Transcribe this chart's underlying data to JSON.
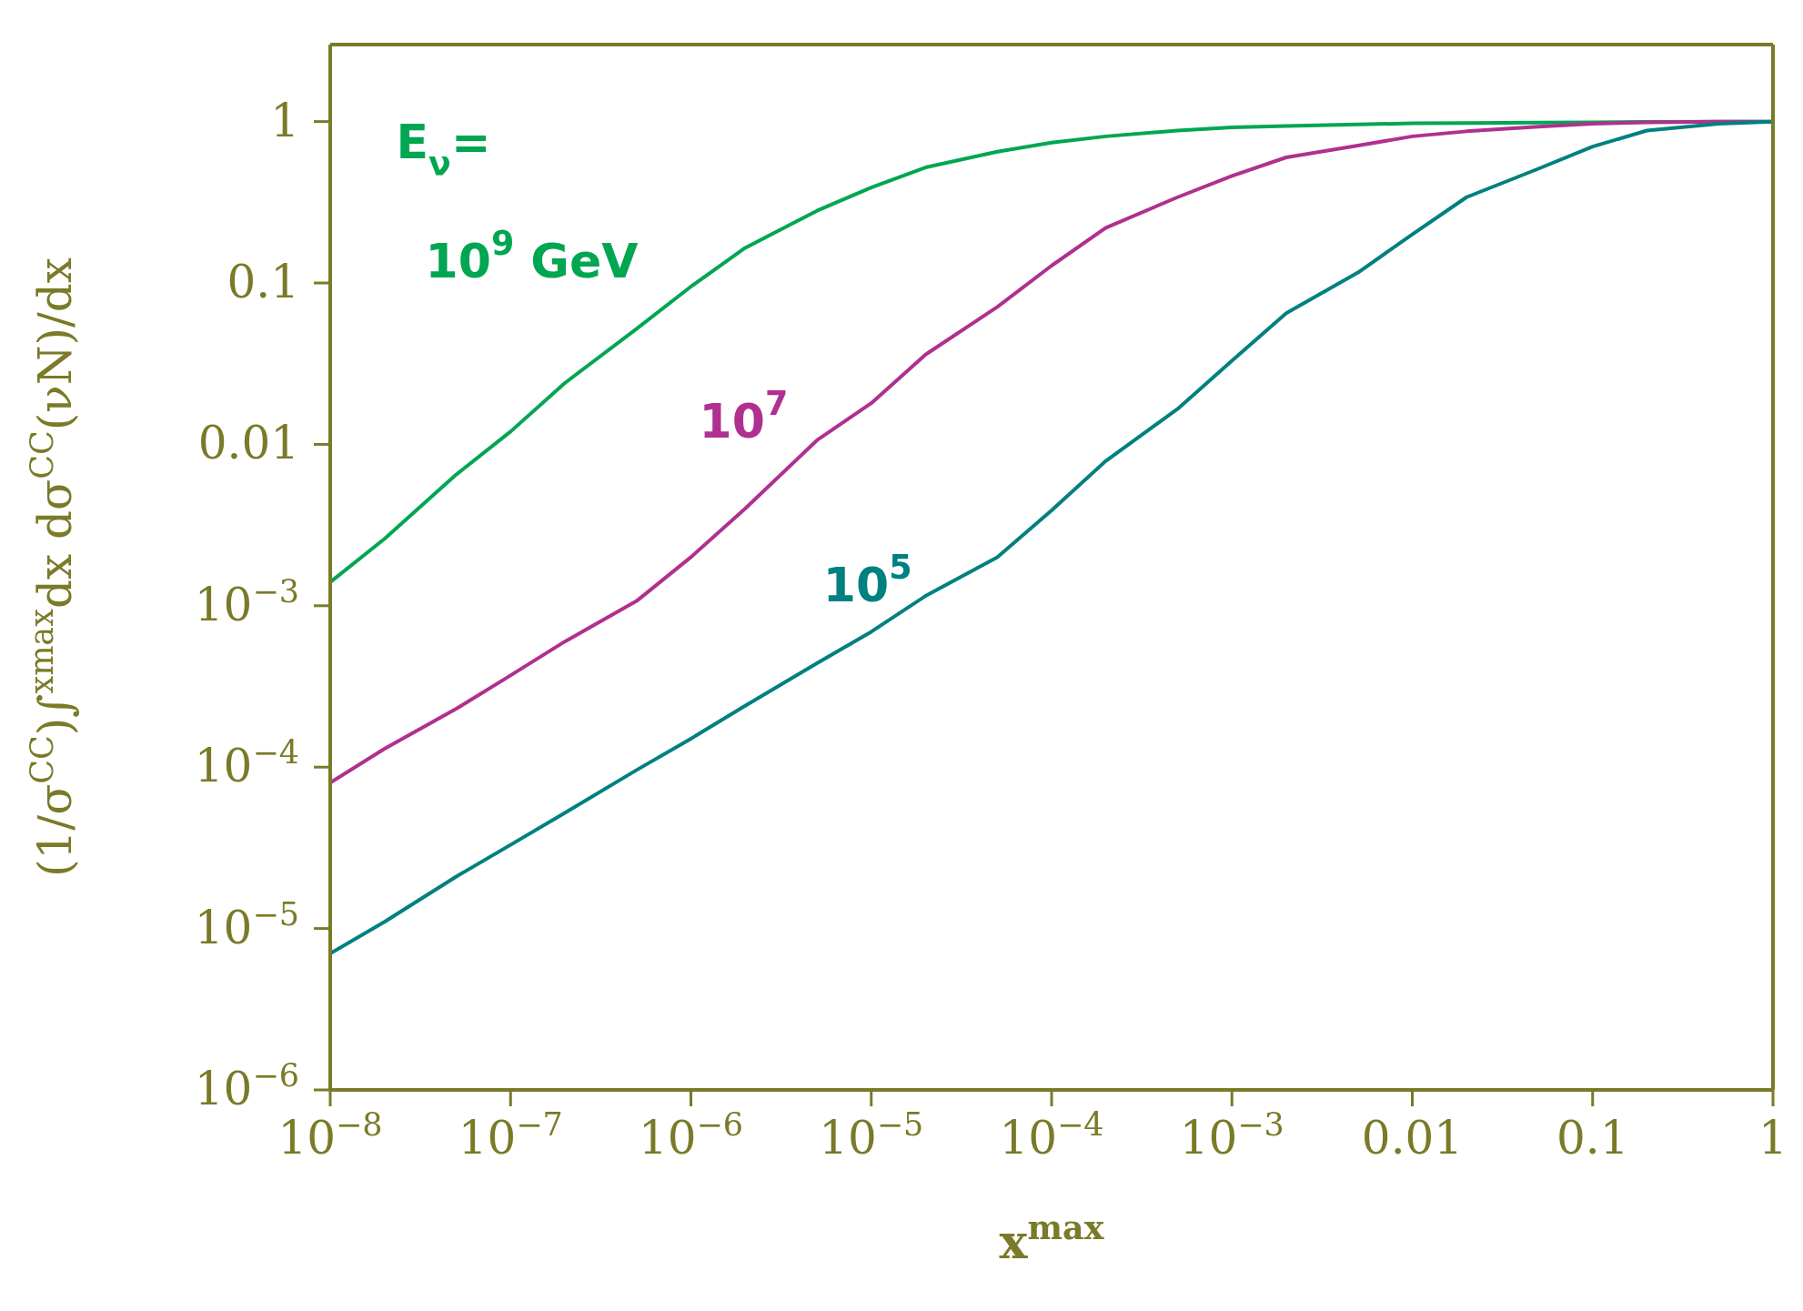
{
  "chart_data": {
    "type": "line",
    "xlabel": "x$^{max}$",
    "ylabel": "(1/σ$^{CC}$)∫$^{xmax}$dx dσ$^{CC}$(νN)/dx",
    "log": "xy",
    "grid": false,
    "legend": false,
    "marker": "none",
    "line_style": "solid",
    "x": [
      1e-08,
      2e-08,
      5e-08,
      1e-07,
      2e-07,
      5e-07,
      1e-06,
      2e-06,
      5e-06,
      1e-05,
      2e-05,
      5e-05,
      0.0001,
      0.0002,
      0.0005,
      0.001,
      0.002,
      0.005,
      0.01,
      0.02,
      0.05,
      0.1,
      0.2,
      0.5,
      1
    ],
    "series": [
      {
        "name": "10$^{9}$ GeV",
        "color": "#00a651",
        "values": [
          0.0014,
          0.0026,
          0.0065,
          0.012,
          0.024,
          0.052,
          0.095,
          0.165,
          0.28,
          0.39,
          0.52,
          0.65,
          0.74,
          0.81,
          0.88,
          0.92,
          0.94,
          0.96,
          0.975,
          0.98,
          0.985,
          0.99,
          0.995,
          0.998,
          1
        ]
      },
      {
        "name": "10$^{7}$",
        "color": "#b0308f",
        "values": [
          8e-05,
          0.00013,
          0.00023,
          0.00037,
          0.0006,
          0.00107,
          0.002,
          0.004,
          0.0106,
          0.018,
          0.036,
          0.071,
          0.128,
          0.22,
          0.34,
          0.46,
          0.6,
          0.71,
          0.81,
          0.87,
          0.93,
          0.97,
          0.99,
          0.998,
          1
        ]
      },
      {
        "name": "10$^{5}$",
        "color": "#008080",
        "values": [
          7e-06,
          1.1e-05,
          2.1e-05,
          3.3e-05,
          5.2e-05,
          9.6e-05,
          0.00015,
          0.00024,
          0.00044,
          0.00069,
          0.00115,
          0.002,
          0.0039,
          0.0079,
          0.0166,
          0.033,
          0.065,
          0.116,
          0.2,
          0.34,
          0.51,
          0.7,
          0.88,
          0.97,
          1
        ]
      }
    ],
    "annotations": [
      "E$_{ν}$="
    ],
    "xlim": [
      1e-08,
      1
    ],
    "ylim": [
      1e-06,
      3
    ],
    "xticks": [
      {
        "value": 1e-08,
        "label": "10$^{−8}$"
      },
      {
        "value": 1e-07,
        "label": "10$^{−7}$"
      },
      {
        "value": 1e-06,
        "label": "10$^{−6}$"
      },
      {
        "value": 1e-05,
        "label": "10$^{−5}$"
      },
      {
        "value": 0.0001,
        "label": "10$^{−4}$"
      },
      {
        "value": 0.001,
        "label": "10$^{−3}$"
      },
      0.01,
      0.1,
      1
    ],
    "yticks": [
      {
        "value": 1e-06,
        "label": "10$^{−6}$"
      },
      {
        "value": 1e-05,
        "label": "10$^{−5}$"
      },
      {
        "value": 0.0001,
        "label": "10$^{−4}$"
      },
      {
        "value": 0.001,
        "label": "10$^{−3}$"
      },
      0.01,
      0.1,
      1
    ]
  }
}
